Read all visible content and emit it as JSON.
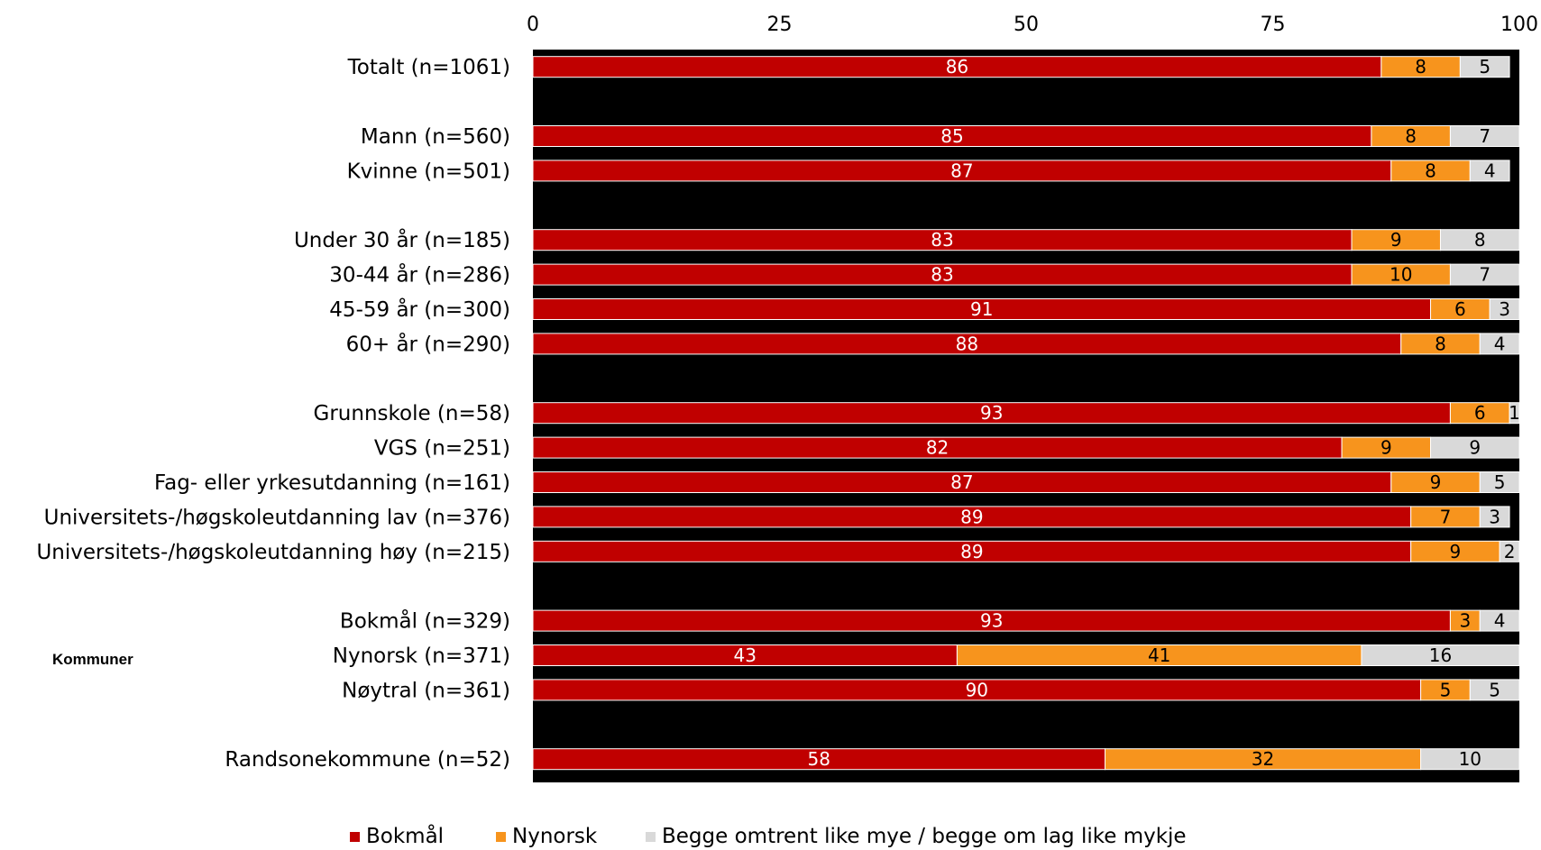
{
  "chart_data": {
    "type": "bar",
    "orientation": "horizontal",
    "stacked": true,
    "xlim": [
      0,
      100
    ],
    "xticks": [
      "0",
      "25",
      "50",
      "75",
      "100"
    ],
    "side_label": "Kommuner",
    "categories": [
      "Totalt (n=1061)",
      "",
      "Mann (n=560)",
      "Kvinne (n=501)",
      "",
      "Under 30 år (n=185)",
      "30-44 år (n=286)",
      "45-59 år (n=300)",
      "60+ år (n=290)",
      "",
      "Grunnskole (n=58)",
      "VGS (n=251)",
      "Fag- eller yrkesutdanning (n=161)",
      "Universitets-/høgskoleutdanning lav (n=376)",
      "Universitets-/høgskoleutdanning høy (n=215)",
      "",
      "Bokmål (n=329)",
      "Nynorsk (n=371)",
      "Nøytral (n=361)",
      "",
      "Randsonekommune (n=52)"
    ],
    "series": [
      {
        "name": "Bokmål",
        "color": "#C00000",
        "values": [
          86,
          null,
          85,
          87,
          null,
          83,
          83,
          91,
          88,
          null,
          93,
          82,
          87,
          89,
          89,
          null,
          93,
          43,
          90,
          null,
          58
        ]
      },
      {
        "name": "Nynorsk",
        "color": "#F7941D",
        "values": [
          8,
          null,
          8,
          8,
          null,
          9,
          10,
          6,
          8,
          null,
          6,
          9,
          9,
          7,
          9,
          null,
          3,
          41,
          5,
          null,
          32
        ]
      },
      {
        "name": "Begge omtrent like mye / begge om lag like mykje",
        "color": "#D9D9D9",
        "values": [
          5,
          null,
          7,
          4,
          null,
          8,
          7,
          3,
          4,
          null,
          1,
          9,
          5,
          3,
          2,
          null,
          4,
          16,
          5,
          null,
          10
        ]
      }
    ],
    "plot_background": "#000000",
    "legend_position": "bottom"
  }
}
